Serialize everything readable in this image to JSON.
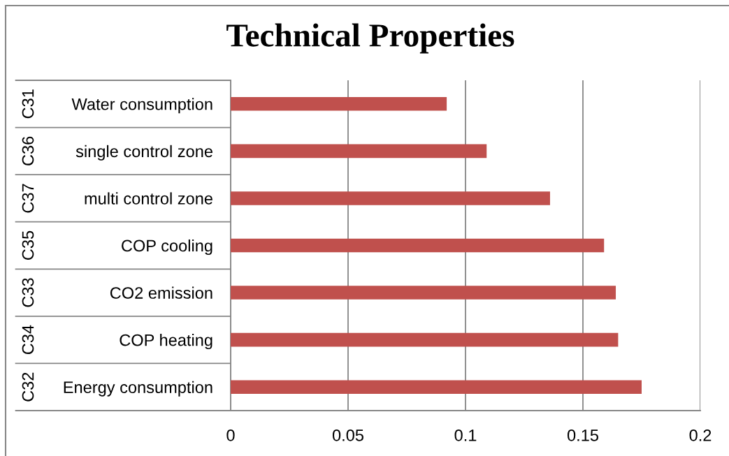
{
  "chart_data": {
    "type": "bar",
    "orientation": "horizontal",
    "title": "Technical Properties",
    "categories": [
      "Water consumption",
      "single control zone",
      "multi control zone",
      "COP cooling",
      "CO2 emission",
      "COP heating",
      "Energy consumption"
    ],
    "values": [
      0.092,
      0.109,
      0.136,
      0.159,
      0.164,
      0.165,
      0.175
    ],
    "color": "#c0504d",
    "xlim": [
      0,
      0.2
    ],
    "xticks": [
      0,
      0.05,
      0.1,
      0.15,
      0.2
    ],
    "grid": "x",
    "annotations": [
      "C31",
      "C36",
      "C37",
      "C35",
      "C33",
      "C34",
      "C32"
    ]
  }
}
